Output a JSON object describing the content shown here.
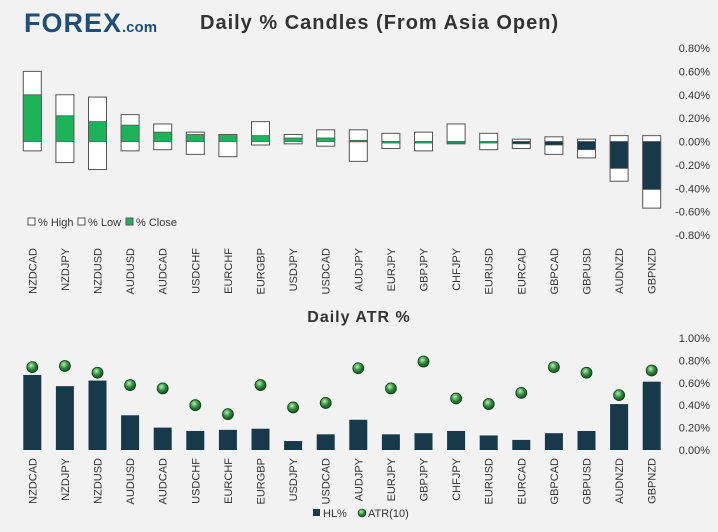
{
  "header": {
    "logo_text": "FOREX",
    "logo_suffix": ".com",
    "title": "Daily % Candles (From Asia Open)",
    "title2": "Daily ATR %"
  },
  "colors": {
    "background": "#f2f2f2",
    "close_fill": "#1db35a",
    "bar_navy": "#17394a",
    "dot_green": "#2e8b3e",
    "box_stroke": "#555555"
  },
  "chart_data": [
    {
      "type": "candle",
      "title": "Daily % Candles (From Asia Open)",
      "categories": [
        "NZDCAD",
        "NZDJPY",
        "NZDUSD",
        "AUDUSD",
        "AUDCAD",
        "USDCHF",
        "EURCHF",
        "EURGBP",
        "USDJPY",
        "USDCAD",
        "AUDJPY",
        "EURJPY",
        "GBPJPY",
        "CHFJPY",
        "EURUSD",
        "EURCAD",
        "GBPCAD",
        "GBPUSD",
        "AUDNZD",
        "GBPNZD"
      ],
      "series": [
        {
          "name": "% High",
          "values": [
            0.6,
            0.4,
            0.38,
            0.23,
            0.15,
            0.08,
            0.06,
            0.17,
            0.06,
            0.1,
            0.1,
            0.07,
            0.08,
            0.15,
            0.07,
            0.02,
            0.04,
            0.02,
            0.05,
            0.05
          ]
        },
        {
          "name": "% Low",
          "values": [
            -0.08,
            -0.18,
            -0.24,
            -0.08,
            -0.07,
            -0.11,
            -0.13,
            -0.03,
            -0.02,
            -0.04,
            -0.17,
            -0.06,
            -0.08,
            -0.02,
            -0.07,
            -0.06,
            -0.11,
            -0.14,
            -0.34,
            -0.57
          ]
        },
        {
          "name": "% Close",
          "values": [
            0.4,
            0.22,
            0.17,
            0.14,
            0.08,
            0.06,
            0.05,
            0.05,
            0.03,
            0.03,
            0.01,
            0.0,
            0.0,
            0.0,
            0.0,
            -0.02,
            -0.03,
            -0.07,
            -0.23,
            -0.41
          ]
        }
      ],
      "ylim": [
        -0.8,
        0.8
      ],
      "yticks": [
        0.8,
        0.6,
        0.4,
        0.2,
        0.0,
        -0.2,
        -0.4,
        -0.6,
        -0.8
      ],
      "ytick_labels": [
        "0.80%",
        "0.60%",
        "0.40%",
        "0.20%",
        "0.00%",
        "-0.20%",
        "-0.40%",
        "-0.60%",
        "-0.80%"
      ],
      "legend": [
        "% High",
        "% Low",
        "% Close"
      ],
      "legend_position": "bottom-left"
    },
    {
      "type": "bar",
      "title": "Daily ATR %",
      "categories": [
        "NZDCAD",
        "NZDJPY",
        "NZDUSD",
        "AUDUSD",
        "AUDCAD",
        "USDCHF",
        "EURCHF",
        "EURGBP",
        "USDJPY",
        "USDCAD",
        "AUDJPY",
        "EURJPY",
        "GBPJPY",
        "CHFJPY",
        "EURUSD",
        "EURCAD",
        "GBPCAD",
        "GBPUSD",
        "AUDNZD",
        "GBPNZD"
      ],
      "series": [
        {
          "name": "HL%",
          "type": "bar",
          "values": [
            0.67,
            0.57,
            0.62,
            0.31,
            0.2,
            0.17,
            0.18,
            0.19,
            0.08,
            0.14,
            0.27,
            0.14,
            0.15,
            0.17,
            0.13,
            0.09,
            0.15,
            0.17,
            0.41,
            0.61
          ]
        },
        {
          "name": "ATR(10)",
          "type": "point",
          "values": [
            0.74,
            0.75,
            0.69,
            0.58,
            0.55,
            0.4,
            0.32,
            0.58,
            0.38,
            0.42,
            0.73,
            0.55,
            0.79,
            0.46,
            0.41,
            0.51,
            0.74,
            0.69,
            0.49,
            0.71
          ]
        }
      ],
      "ylim": [
        0,
        1.0
      ],
      "yticks": [
        1.0,
        0.8,
        0.6,
        0.4,
        0.2,
        0.0
      ],
      "ytick_labels": [
        "1.00%",
        "0.80%",
        "0.60%",
        "0.40%",
        "0.20%",
        "0.00%"
      ],
      "legend": [
        "HL%",
        "ATR(10)"
      ],
      "legend_position": "bottom"
    }
  ]
}
